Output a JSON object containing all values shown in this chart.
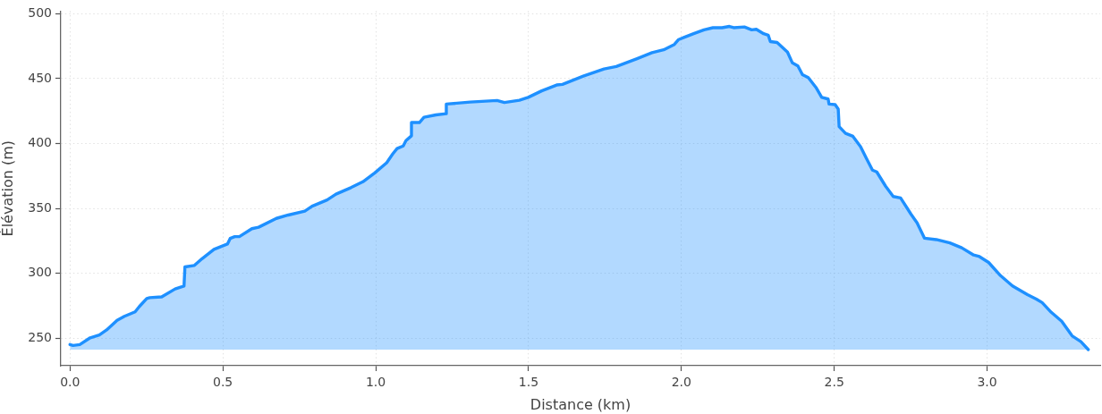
{
  "chart_data": {
    "type": "area",
    "xlabel": "Distance (km)",
    "ylabel": "Élévation (m)",
    "x": [
      0,
      0.01,
      0.032,
      0.066,
      0.096,
      0.12,
      0.154,
      0.178,
      0.213,
      0.227,
      0.251,
      0.261,
      0.3,
      0.344,
      0.373,
      0.376,
      0.407,
      0.432,
      0.471,
      0.515,
      0.524,
      0.539,
      0.554,
      0.595,
      0.617,
      0.675,
      0.714,
      0.768,
      0.792,
      0.841,
      0.87,
      0.919,
      0.958,
      0.997,
      1.036,
      1.056,
      1.07,
      1.09,
      1.099,
      1.117,
      1.117,
      1.143,
      1.158,
      1.197,
      1.231,
      1.231,
      1.309,
      1.397,
      1.421,
      1.47,
      1.499,
      1.543,
      1.592,
      1.611,
      1.679,
      1.747,
      1.787,
      1.855,
      1.904,
      1.942,
      1.977,
      1.991,
      2.04,
      2.074,
      2.103,
      2.133,
      2.157,
      2.171,
      2.206,
      2.23,
      2.245,
      2.269,
      2.284,
      2.291,
      2.313,
      2.347,
      2.363,
      2.381,
      2.396,
      2.415,
      2.44,
      2.459,
      2.48,
      2.483,
      2.503,
      2.513,
      2.516,
      2.537,
      2.561,
      2.586,
      2.605,
      2.625,
      2.639,
      2.668,
      2.693,
      2.717,
      2.751,
      2.771,
      2.795,
      2.834,
      2.878,
      2.917,
      2.956,
      2.975,
      3.005,
      3.044,
      3.083,
      3.132,
      3.161,
      3.18,
      3.21,
      3.244,
      3.278,
      3.307,
      3.331
    ],
    "series": [
      {
        "color": "#1e90ff",
        "values": [
          245.3,
          244.6,
          245.3,
          250.5,
          252.7,
          256.6,
          264,
          267,
          270.5,
          274.6,
          280.7,
          281.4,
          282,
          288.1,
          290.4,
          305.1,
          306.2,
          311.4,
          318.6,
          322.7,
          327,
          328.4,
          328.4,
          334.5,
          335.6,
          342.4,
          345,
          348,
          351.8,
          356.6,
          361.1,
          366.1,
          370.6,
          377.4,
          385.3,
          392.1,
          396.2,
          398.2,
          402.3,
          406,
          416.2,
          416.2,
          420.3,
          422.1,
          423,
          430.4,
          432,
          433.2,
          431.6,
          433.4,
          435.6,
          440.6,
          445.1,
          445.6,
          451.9,
          457.5,
          459.3,
          465.4,
          470,
          472.2,
          476.3,
          480.1,
          484.6,
          487.6,
          489.2,
          489.2,
          490.2,
          489.2,
          489.8,
          487.6,
          488,
          484.6,
          483.5,
          478.5,
          477.8,
          470.4,
          462.1,
          459.8,
          453.1,
          450.8,
          443.3,
          435.6,
          434.3,
          430.4,
          430,
          426.6,
          413.1,
          407.9,
          405.6,
          397.7,
          388.7,
          379.6,
          378.2,
          367.2,
          359.3,
          358.2,
          345.7,
          339,
          327.2,
          326.1,
          323.6,
          319.8,
          314.2,
          313,
          308.5,
          298.3,
          290.4,
          283.7,
          280.3,
          277.6,
          270.1,
          263.3,
          252,
          247.5,
          241.4
        ]
      }
    ],
    "xlim": [
      -0.03,
      3.37
    ],
    "ylim": [
      229,
      502
    ],
    "xticks": [
      {
        "value": 0,
        "label": "0.0"
      },
      0.5,
      {
        "value": 1,
        "label": "1.0"
      },
      1.5,
      {
        "value": 2,
        "label": "2.0"
      },
      2.5,
      {
        "value": 3,
        "label": "3.0"
      }
    ],
    "yticks": [
      250,
      300,
      350,
      400,
      450,
      500
    ],
    "grid": true
  }
}
